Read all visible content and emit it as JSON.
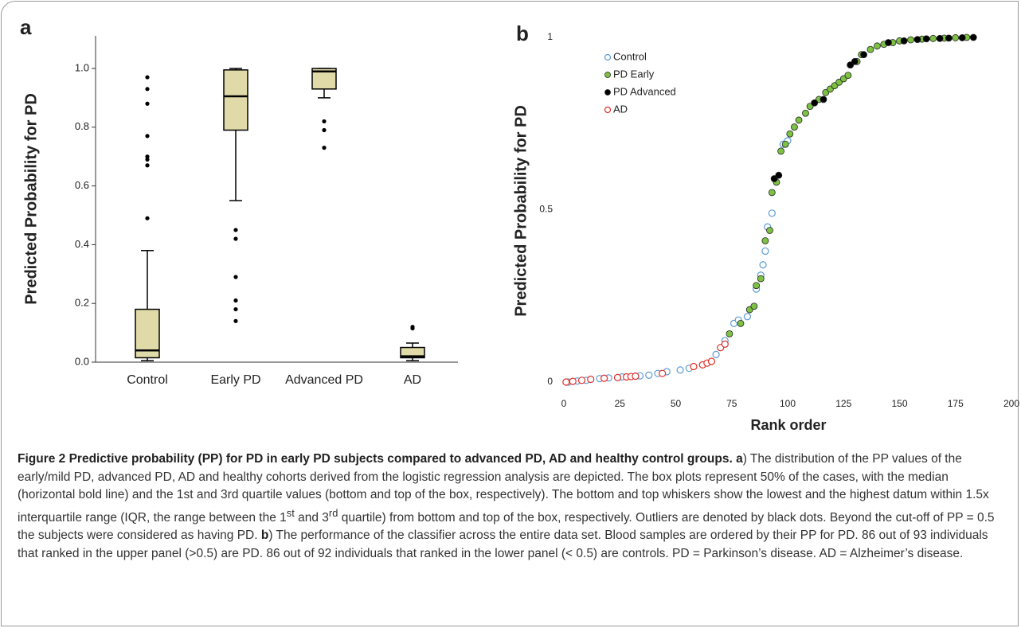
{
  "chart_data": [
    {
      "type": "box",
      "panel_label": "a",
      "ylabel": "Predicted Probability for PD",
      "categories": [
        "Control",
        "Early PD",
        "Advanced PD",
        "AD"
      ],
      "color": "#e0d9a8",
      "boxes": [
        {
          "whislo": 0.005,
          "q1": 0.015,
          "med": 0.04,
          "q3": 0.18,
          "whishi": 0.38,
          "fliers": [
            0.97,
            0.93,
            0.88,
            0.77,
            0.7,
            0.69,
            0.67,
            0.49
          ]
        },
        {
          "whislo": 0.55,
          "q1": 0.79,
          "med": 0.905,
          "q3": 0.995,
          "whishi": 1.0,
          "fliers": [
            0.45,
            0.42,
            0.29,
            0.21,
            0.18,
            0.14
          ]
        },
        {
          "whislo": 0.9,
          "q1": 0.93,
          "med": 0.99,
          "q3": 1.0,
          "whishi": 1.0,
          "fliers": [
            0.82,
            0.79,
            0.73
          ]
        },
        {
          "whislo": 0.005,
          "q1": 0.015,
          "med": 0.02,
          "q3": 0.05,
          "whishi": 0.065,
          "fliers": [
            0.12,
            0.115
          ]
        }
      ],
      "ylim": [
        0,
        1
      ],
      "yticks": [
        {
          "value": 0,
          "label": "0.0"
        },
        0.2,
        0.4,
        0.6,
        0.8,
        {
          "value": 1,
          "label": "1.0"
        }
      ]
    },
    {
      "type": "scatter",
      "panel_label": "b",
      "ylabel": "Predicted Probability for PD",
      "xlabel": "Rank order",
      "xlim": [
        0,
        200
      ],
      "xticks": [
        0,
        25,
        50,
        75,
        100,
        125,
        150,
        175,
        200
      ],
      "ylim": [
        0,
        1
      ],
      "yticks": [
        0,
        0.5,
        1
      ],
      "legend": "top-left",
      "series": [
        {
          "name": "Control",
          "color": "#5b9bd5",
          "marker": "open",
          "x": [
            2,
            6,
            10,
            16,
            20,
            26,
            34,
            38,
            42,
            46,
            52,
            56,
            68,
            72,
            76,
            78,
            82,
            86,
            88,
            89,
            90,
            91,
            93,
            98,
            100
          ],
          "values": [
            0,
            0.003,
            0.005,
            0.01,
            0.012,
            0.015,
            0.018,
            0.02,
            0.025,
            0.03,
            0.035,
            0.04,
            0.08,
            0.12,
            0.17,
            0.18,
            0.19,
            0.27,
            0.31,
            0.34,
            0.38,
            0.45,
            0.49,
            0.69,
            0.7
          ]
        },
        {
          "name": "PD Early",
          "color": "#7dc242",
          "marker": "filled",
          "x": [
            74,
            79,
            83,
            85,
            86,
            88,
            90,
            92,
            93,
            95,
            97,
            99,
            101,
            103,
            105,
            108,
            110,
            114,
            117,
            119,
            121,
            123,
            125,
            127,
            131,
            133,
            137,
            140,
            143,
            147,
            150,
            155,
            160,
            165,
            170,
            175,
            180
          ],
          "values": [
            0.14,
            0.17,
            0.21,
            0.22,
            0.28,
            0.3,
            0.41,
            0.44,
            0.55,
            0.58,
            0.67,
            0.69,
            0.72,
            0.74,
            0.76,
            0.78,
            0.8,
            0.82,
            0.84,
            0.85,
            0.86,
            0.87,
            0.88,
            0.89,
            0.93,
            0.95,
            0.965,
            0.975,
            0.98,
            0.985,
            0.99,
            0.993,
            0.995,
            0.997,
            0.998,
            0.999,
            1.0
          ]
        },
        {
          "name": "PD Advanced",
          "color": "#000000",
          "marker": "filled",
          "x": [
            94,
            96,
            112,
            116,
            128,
            130,
            134,
            145,
            152,
            158,
            162,
            168,
            172,
            178,
            183
          ],
          "values": [
            0.59,
            0.6,
            0.81,
            0.82,
            0.92,
            0.93,
            0.95,
            0.985,
            0.99,
            0.994,
            0.996,
            0.997,
            0.998,
            0.999,
            1.0
          ]
        },
        {
          "name": "AD",
          "color": "#e0302a",
          "marker": "open",
          "x": [
            1,
            4,
            8,
            12,
            18,
            24,
            28,
            30,
            32,
            44,
            58,
            62,
            64,
            66,
            70,
            72
          ],
          "values": [
            0,
            0.002,
            0.005,
            0.008,
            0.011,
            0.013,
            0.015,
            0.016,
            0.017,
            0.025,
            0.045,
            0.05,
            0.055,
            0.06,
            0.1,
            0.11
          ]
        }
      ]
    }
  ],
  "caption": {
    "segments": [
      "Figure 2 Predictive probability (PP) for PD in early PD subjects compared to advanced PD, AD and healthy control groups.",
      "a",
      ") The distribution of the PP values of the early/mild PD, advanced PD, AD and healthy cohorts derived from the logistic regression analysis are depicted. The box plots represent 50% of the cases, with the median (horizontal bold line) and the 1st and 3rd quartile values (bottom and top of the box, respectively). The bottom and top whiskers show the lowest and the highest datum within 1.5x interquartile range (IQR, the range between the 1",
      "st",
      " and 3",
      "rd",
      " quartile) from bottom and top of the box, respectively. Outliers are denoted by black dots. Beyond the cut-off of PP = 0.5 the subjects were considered as having PD.",
      "b",
      ") The performance of the classifier across the entire data set. Blood samples are ordered by their PP for PD. 86 out of 93 individuals that ranked in the upper panel (>0.5) are PD. 86 out of 92 individuals that ranked in the lower panel (< 0.5) are controls. PD = Parkinson’s disease. AD = Alzheimer’s disease."
    ]
  }
}
